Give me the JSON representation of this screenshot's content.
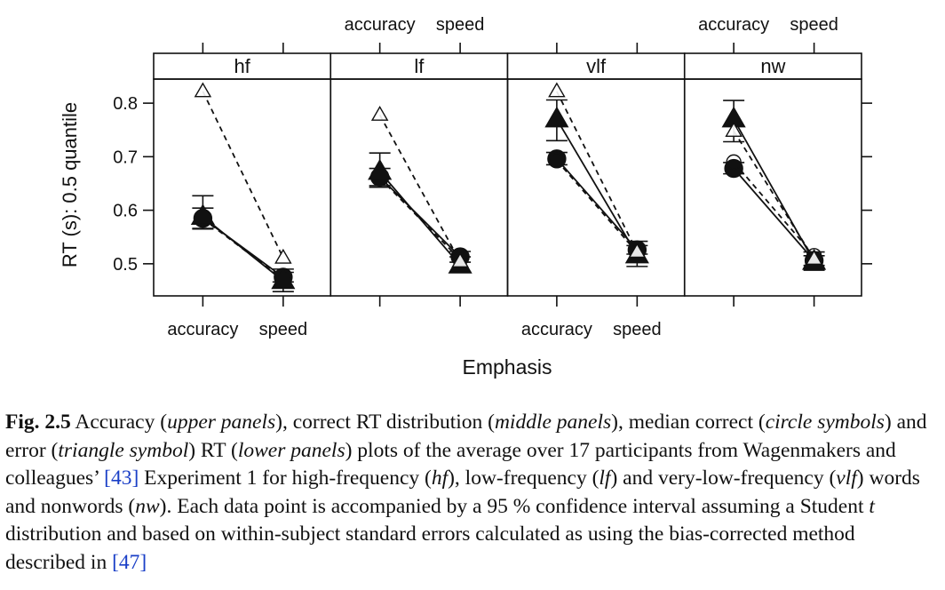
{
  "chart_data": {
    "type": "scatter",
    "ylabel": "RT (s): 0.5 quantile",
    "xlabel": "Emphasis",
    "categories": [
      "accuracy",
      "speed"
    ],
    "ylim": [
      0.44,
      0.845
    ],
    "yticks": [
      0.5,
      0.6,
      0.7,
      0.8
    ],
    "ytick_labels": [
      "0.5",
      "0.6",
      "0.7",
      "0.8"
    ],
    "panels": [
      {
        "label": "hf",
        "series": [
          {
            "marker": "circle-filled",
            "line": "solid",
            "values": [
              0.585,
              0.475
            ],
            "ci": [
              [
                0.566,
                0.604
              ],
              [
                0.466,
                0.484
              ]
            ]
          },
          {
            "marker": "circle-open",
            "line": "dashed",
            "values": [
              0.584,
              0.471
            ],
            "ci": null
          },
          {
            "marker": "triangle-filled",
            "line": "solid",
            "values": [
              0.588,
              0.468
            ],
            "ci": [
              [
                0.565,
                0.627
              ],
              [
                0.448,
                0.49
              ]
            ]
          },
          {
            "marker": "triangle-open",
            "line": "dashed",
            "values": [
              0.822,
              0.511
            ],
            "ci": null
          }
        ]
      },
      {
        "label": "lf",
        "series": [
          {
            "marker": "circle-filled",
            "line": "solid",
            "values": [
              0.662,
              0.513
            ],
            "ci": [
              [
                0.646,
                0.678
              ],
              [
                0.503,
                0.523
              ]
            ]
          },
          {
            "marker": "circle-open",
            "line": "dashed",
            "values": [
              0.66,
              0.508
            ],
            "ci": null
          },
          {
            "marker": "triangle-filled",
            "line": "solid",
            "values": [
              0.672,
              0.497
            ],
            "ci": [
              [
                0.643,
                0.707
              ],
              [
                0.485,
                0.513
              ]
            ]
          },
          {
            "marker": "triangle-open",
            "line": "dashed",
            "values": [
              0.778,
              0.504
            ],
            "ci": null
          }
        ]
      },
      {
        "label": "vlf",
        "series": [
          {
            "marker": "circle-filled",
            "line": "solid",
            "values": [
              0.696,
              0.526
            ],
            "ci": [
              [
                0.685,
                0.708
              ],
              [
                0.518,
                0.534
              ]
            ]
          },
          {
            "marker": "circle-open",
            "line": "dashed",
            "values": [
              0.693,
              0.521
            ],
            "ci": null
          },
          {
            "marker": "triangle-filled",
            "line": "solid",
            "values": [
              0.77,
              0.516
            ],
            "ci": [
              [
                0.73,
                0.806
              ],
              [
                0.495,
                0.542
              ]
            ]
          },
          {
            "marker": "triangle-open",
            "line": "dashed",
            "values": [
              0.822,
              0.522
            ],
            "ci": null
          }
        ]
      },
      {
        "label": "nw",
        "series": [
          {
            "marker": "circle-filled",
            "line": "solid",
            "values": [
              0.678,
              0.506
            ],
            "ci": [
              [
                0.668,
                0.689
              ],
              [
                0.497,
                0.515
              ]
            ]
          },
          {
            "marker": "circle-open",
            "line": "dashed",
            "values": [
              0.69,
              0.515
            ],
            "ci": null
          },
          {
            "marker": "triangle-filled",
            "line": "solid",
            "values": [
              0.77,
              0.504
            ],
            "ci": [
              [
                0.728,
                0.805
              ],
              [
                0.488,
                0.522
              ]
            ]
          },
          {
            "marker": "triangle-open",
            "line": "dashed",
            "values": [
              0.748,
              0.509
            ],
            "ci": null
          }
        ]
      }
    ],
    "grid": false,
    "legend": "none"
  },
  "caption": {
    "fig_label": "Fig. 2.5",
    "p1": " Accuracy (",
    "i1": "upper panels",
    "p2": "), correct RT distribution (",
    "i2": "middle panels",
    "p3": "), median correct (",
    "i3": "circle symbols",
    "p4": ") and error (",
    "i4": "triangle symbol",
    "p5": ") RT (",
    "i5": "lower panels",
    "p6": ") plots of the average over 17 participants from Wagenmakers and colleagues’ ",
    "ref1": "[43]",
    "p7": " Experiment 1 for high-frequency (",
    "i6": "hf",
    "p8": "), low-frequency (",
    "i7": "lf",
    "p9": ") and very-low-frequency (",
    "i8": "vlf",
    "p10": ") words and nonwords (",
    "i9": "nw",
    "p11": "). Each data point is accompanied by a 95 % confidence interval assuming a Student ",
    "i10": "t",
    "p12": " distribution and based on within-subject standard errors calculated as using the bias-corrected method described in ",
    "ref2": "[47]"
  }
}
